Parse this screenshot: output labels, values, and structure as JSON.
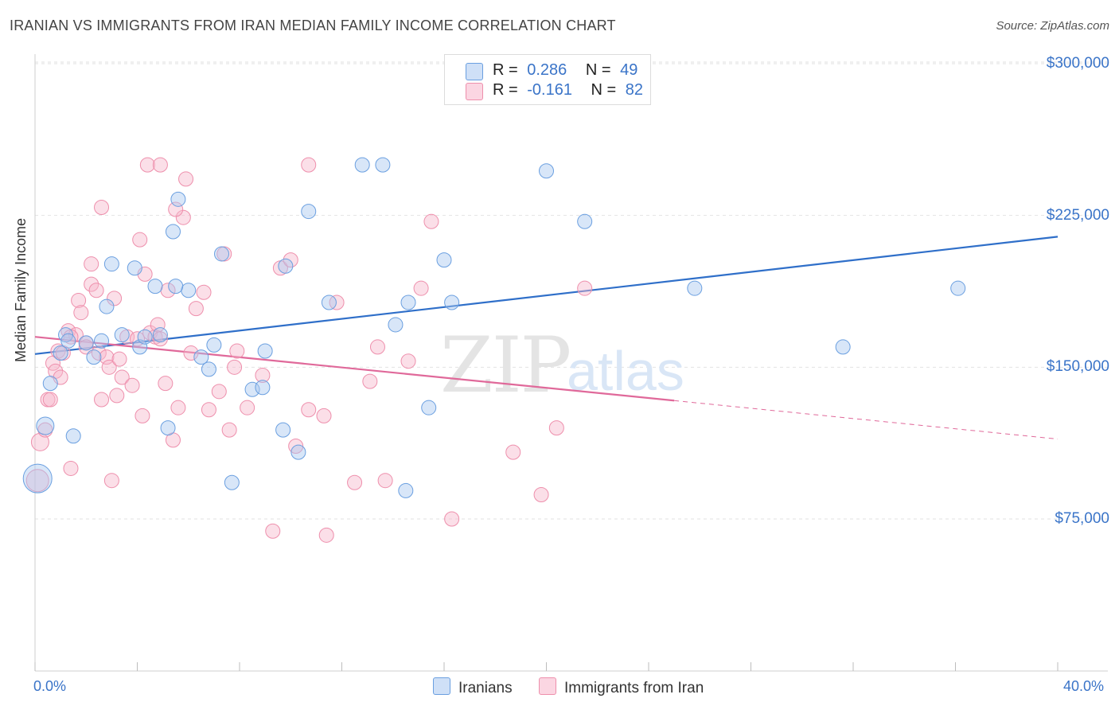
{
  "title": "IRANIAN VS IMMIGRANTS FROM IRAN MEDIAN FAMILY INCOME CORRELATION CHART",
  "source": "Source: ZipAtlas.com",
  "watermark": {
    "zip": "ZIP",
    "atlas": "atlas"
  },
  "legend": {
    "rows": [
      {
        "r_label": "R =",
        "r_value": "0.286",
        "n_label": "N =",
        "n_value": "49",
        "color": "#a9c8f0"
      },
      {
        "r_label": "R =",
        "r_value": "-0.161",
        "n_label": "N =",
        "n_value": "82",
        "color": "#f7b8cc"
      }
    ]
  },
  "bottom_legend": [
    {
      "label": "Iranians",
      "color": "#a9c8f0"
    },
    {
      "label": "Immigrants from Iran",
      "color": "#f7b8cc"
    }
  ],
  "chart_data": {
    "type": "scatter",
    "xlabel": "",
    "ylabel": "Median Family Income",
    "xlim": [
      0,
      40
    ],
    "ylim": [
      0,
      315000
    ],
    "x_tick_labels": [
      "0.0%",
      "40.0%"
    ],
    "y_ticks": [
      {
        "value": 75000,
        "label": "$75,000"
      },
      {
        "value": 150000,
        "label": "$150,000"
      },
      {
        "value": 225000,
        "label": "$225,000"
      },
      {
        "value": 300000,
        "label": "$300,000"
      }
    ],
    "grid": "horizontal dashed",
    "series": [
      {
        "name": "Iranians",
        "color": "#6a9fe0",
        "fill": "#a9c8f0",
        "trend": {
          "x0": 0.0,
          "y0": 156500,
          "x1": 40.0,
          "y1": 214500,
          "color": "#2f6fc9"
        },
        "points": [
          [
            0.1,
            95000,
            18
          ],
          [
            0.4,
            121000,
            11
          ],
          [
            0.6,
            142000,
            9
          ],
          [
            1.0,
            157000,
            9
          ],
          [
            1.2,
            166000,
            9
          ],
          [
            1.5,
            116000,
            9
          ],
          [
            2.0,
            162000,
            9
          ],
          [
            2.3,
            155000,
            9
          ],
          [
            2.8,
            180000,
            9
          ],
          [
            3.0,
            201000,
            9
          ],
          [
            3.4,
            166000,
            9
          ],
          [
            3.9,
            199000,
            9
          ],
          [
            4.1,
            160000,
            9
          ],
          [
            4.3,
            165000,
            9
          ],
          [
            4.7,
            190000,
            9
          ],
          [
            4.9,
            166000,
            9
          ],
          [
            5.2,
            120000,
            9
          ],
          [
            5.4,
            217000,
            9
          ],
          [
            5.6,
            233000,
            9
          ],
          [
            6.0,
            188000,
            9
          ],
          [
            6.5,
            155000,
            9
          ],
          [
            6.8,
            149000,
            9
          ],
          [
            7.0,
            161000,
            9
          ],
          [
            7.3,
            206000,
            9
          ],
          [
            7.7,
            93000,
            9
          ],
          [
            8.5,
            139000,
            9
          ],
          [
            8.9,
            140000,
            9
          ],
          [
            9.0,
            158000,
            9
          ],
          [
            9.7,
            119000,
            9
          ],
          [
            10.3,
            108000,
            9
          ],
          [
            10.7,
            227000,
            9
          ],
          [
            11.5,
            182000,
            9
          ],
          [
            12.8,
            250000,
            9
          ],
          [
            13.6,
            250000,
            9
          ],
          [
            14.1,
            171000,
            9
          ],
          [
            14.5,
            89000,
            9
          ],
          [
            14.6,
            182000,
            9
          ],
          [
            15.4,
            130000,
            9
          ],
          [
            16.0,
            203000,
            9
          ],
          [
            16.3,
            182000,
            9
          ],
          [
            20.0,
            247000,
            9
          ],
          [
            21.5,
            222000,
            9
          ],
          [
            25.8,
            189000,
            9
          ],
          [
            31.6,
            160000,
            9
          ],
          [
            36.1,
            189000,
            9
          ],
          [
            1.3,
            163000,
            9
          ],
          [
            5.5,
            190000,
            9
          ],
          [
            9.8,
            200000,
            9
          ],
          [
            2.6,
            163000,
            9
          ]
        ]
      },
      {
        "name": "Immigrants from Iran",
        "color": "#ee8fac",
        "fill": "#f7b8cc",
        "trend": {
          "x0": 0.0,
          "y0": 165000,
          "x1": 25.0,
          "y1": 133500,
          "color": "#e0699a"
        },
        "trend_dashed": {
          "x0": 25.0,
          "y0": 133500,
          "x1": 40.0,
          "y1": 114500
        },
        "points": [
          [
            0.1,
            94000,
            14
          ],
          [
            0.2,
            113000,
            11
          ],
          [
            0.4,
            119000,
            9
          ],
          [
            0.5,
            134000,
            9
          ],
          [
            0.6,
            134000,
            9
          ],
          [
            0.7,
            152000,
            9
          ],
          [
            0.8,
            148000,
            9
          ],
          [
            0.9,
            158000,
            9
          ],
          [
            1.0,
            145000,
            9
          ],
          [
            1.1,
            157000,
            9
          ],
          [
            1.3,
            168000,
            9
          ],
          [
            1.4,
            100000,
            9
          ],
          [
            1.6,
            166000,
            9
          ],
          [
            1.7,
            183000,
            9
          ],
          [
            1.8,
            177000,
            9
          ],
          [
            2.0,
            162000,
            9
          ],
          [
            2.2,
            191000,
            9
          ],
          [
            2.2,
            201000,
            9
          ],
          [
            2.4,
            188000,
            9
          ],
          [
            2.5,
            157000,
            9
          ],
          [
            2.6,
            134000,
            9
          ],
          [
            2.6,
            229000,
            9
          ],
          [
            2.8,
            155000,
            9
          ],
          [
            2.9,
            150000,
            9
          ],
          [
            3.0,
            94000,
            9
          ],
          [
            3.1,
            184000,
            9
          ],
          [
            3.2,
            136000,
            9
          ],
          [
            3.3,
            154000,
            9
          ],
          [
            3.4,
            145000,
            9
          ],
          [
            3.6,
            165000,
            9
          ],
          [
            3.8,
            141000,
            9
          ],
          [
            4.0,
            164000,
            9
          ],
          [
            4.1,
            213000,
            9
          ],
          [
            4.2,
            126000,
            9
          ],
          [
            4.3,
            196000,
            9
          ],
          [
            4.4,
            250000,
            9
          ],
          [
            4.5,
            167000,
            9
          ],
          [
            4.7,
            165000,
            9
          ],
          [
            4.8,
            171000,
            9
          ],
          [
            4.9,
            250000,
            9
          ],
          [
            5.1,
            142000,
            9
          ],
          [
            5.2,
            188000,
            9
          ],
          [
            5.4,
            114000,
            9
          ],
          [
            5.6,
            130000,
            9
          ],
          [
            5.8,
            224000,
            9
          ],
          [
            5.9,
            243000,
            9
          ],
          [
            6.3,
            179000,
            9
          ],
          [
            6.6,
            187000,
            9
          ],
          [
            6.8,
            129000,
            9
          ],
          [
            7.2,
            138000,
            9
          ],
          [
            7.4,
            206000,
            9
          ],
          [
            7.6,
            119000,
            9
          ],
          [
            7.8,
            150000,
            9
          ],
          [
            7.9,
            158000,
            9
          ],
          [
            8.3,
            130000,
            9
          ],
          [
            8.9,
            146000,
            9
          ],
          [
            9.3,
            69000,
            9
          ],
          [
            9.6,
            199000,
            9
          ],
          [
            10.0,
            203000,
            9
          ],
          [
            10.2,
            111000,
            9
          ],
          [
            10.7,
            129000,
            9
          ],
          [
            10.7,
            250000,
            9
          ],
          [
            11.3,
            126000,
            9
          ],
          [
            11.4,
            67000,
            9
          ],
          [
            11.8,
            182000,
            9
          ],
          [
            12.5,
            93000,
            9
          ],
          [
            13.1,
            143000,
            9
          ],
          [
            13.4,
            160000,
            9
          ],
          [
            13.7,
            94000,
            9
          ],
          [
            14.6,
            153000,
            9
          ],
          [
            15.1,
            189000,
            9
          ],
          [
            15.5,
            222000,
            9
          ],
          [
            16.3,
            75000,
            9
          ],
          [
            18.7,
            108000,
            9
          ],
          [
            19.8,
            87000,
            9
          ],
          [
            20.4,
            120000,
            9
          ],
          [
            21.5,
            189000,
            9
          ],
          [
            5.5,
            228000,
            9
          ],
          [
            2.0,
            160000,
            9
          ],
          [
            6.1,
            157000,
            9
          ],
          [
            1.4,
            165000,
            9
          ],
          [
            4.9,
            164000,
            9
          ]
        ]
      }
    ]
  }
}
